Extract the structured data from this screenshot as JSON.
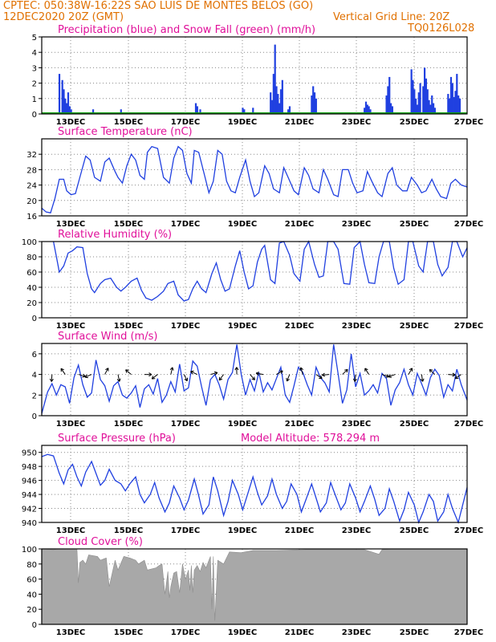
{
  "header": {
    "station_line": "CPTEC:   050:38W-16:22S   SAO LUIS DE MONTES BELOS (GO)",
    "date_line": "12DEC2020 20Z (GMT)",
    "grid_line": "Vertical Grid Line: 20Z",
    "code": "TQ0126L028"
  },
  "colors": {
    "header": "#e07000",
    "title": "#e0109a",
    "line": "#2040e0",
    "snow": "#10a010",
    "cloud": "#a8a8a8",
    "grid": "#888888"
  },
  "chart_data": [
    {
      "type": "bar",
      "title": "Precipitation (blue) and Snow Fall (green) (mm/h)",
      "ylim": [
        0,
        5
      ],
      "yticks": [
        0,
        1,
        2,
        3,
        4,
        5
      ],
      "x_ticks": [
        "13DEC",
        "15DEC",
        "17DEC",
        "19DEC",
        "21DEC",
        "23DEC",
        "25DEC",
        "27DEC"
      ],
      "xlim": [
        0,
        14.5
      ],
      "series": [
        {
          "name": "Precipitation",
          "x": [
            0.6,
            0.7,
            0.75,
            0.8,
            0.85,
            0.9,
            0.95,
            1.0,
            1.2,
            1.75,
            2.7,
            5.25,
            5.3,
            5.4,
            6.85,
            6.9,
            7.2,
            7.8,
            7.85,
            7.9,
            7.95,
            8.0,
            8.05,
            8.1,
            8.15,
            8.2,
            8.4,
            8.45,
            9.2,
            9.25,
            9.3,
            9.35,
            11.0,
            11.05,
            11.1,
            11.15,
            11.2,
            11.75,
            11.8,
            11.85,
            11.9,
            11.95,
            12.6,
            12.65,
            12.7,
            12.75,
            12.8,
            12.85,
            12.9,
            13.0,
            13.05,
            13.1,
            13.15,
            13.2,
            13.25,
            13.3,
            13.35,
            13.4,
            13.85,
            13.9,
            13.95,
            14.0,
            14.05,
            14.1,
            14.15,
            14.2,
            14.25
          ],
          "values": [
            2.6,
            2.2,
            1.6,
            1.0,
            0.7,
            1.4,
            0.5,
            0.3,
            0.1,
            0.3,
            0.3,
            0.7,
            0.5,
            0.3,
            0.4,
            0.3,
            0.4,
            1.4,
            0.9,
            2.6,
            4.5,
            1.8,
            1.3,
            0.7,
            1.6,
            2.2,
            0.3,
            0.5,
            1.2,
            1.8,
            1.4,
            1.0,
            0.4,
            0.8,
            0.6,
            0.5,
            0.3,
            1.2,
            1.8,
            2.4,
            0.7,
            0.5,
            2.9,
            2.2,
            1.6,
            1.0,
            0.6,
            1.4,
            2.0,
            1.8,
            3.0,
            2.3,
            1.6,
            0.9,
            0.6,
            1.2,
            0.7,
            0.4,
            1.3,
            1.0,
            2.4,
            2.0,
            1.1,
            1.5,
            2.6,
            1.2,
            1.0
          ]
        },
        {
          "name": "Snow Fall",
          "values": [
            0
          ]
        }
      ]
    },
    {
      "type": "line",
      "title": "Surface Temperature (nC)",
      "ylim": [
        16,
        36
      ],
      "yticks": [
        16,
        20,
        24,
        28,
        32
      ],
      "x_ticks": [
        "13DEC",
        "15DEC",
        "17DEC",
        "19DEC",
        "21DEC",
        "23DEC",
        "25DEC",
        "27DEC"
      ],
      "xlim": [
        0,
        14.5
      ],
      "x": [
        0,
        0.15,
        0.3,
        0.45,
        0.6,
        0.75,
        0.85,
        1.0,
        1.15,
        1.3,
        1.5,
        1.65,
        1.8,
        2.0,
        2.15,
        2.3,
        2.5,
        2.6,
        2.75,
        2.9,
        3.05,
        3.2,
        3.35,
        3.5,
        3.6,
        3.75,
        3.95,
        4.15,
        4.35,
        4.5,
        4.65,
        4.8,
        4.95,
        5.1,
        5.2,
        5.35,
        5.55,
        5.7,
        5.85,
        6.0,
        6.15,
        6.3,
        6.45,
        6.6,
        6.75,
        6.95,
        7.1,
        7.25,
        7.4,
        7.6,
        7.75,
        7.9,
        8.1,
        8.25,
        8.4,
        8.6,
        8.75,
        8.95,
        9.1,
        9.25,
        9.45,
        9.6,
        9.75,
        9.95,
        10.1,
        10.25,
        10.45,
        10.6,
        10.75,
        10.95,
        11.1,
        11.25,
        11.45,
        11.6,
        11.8,
        11.95,
        12.1,
        12.3,
        12.45,
        12.6,
        12.8,
        12.95,
        13.1,
        13.3,
        13.45,
        13.6,
        13.8,
        13.95,
        14.1,
        14.3,
        14.5
      ],
      "values": [
        18.0,
        17.0,
        16.8,
        20.5,
        25.5,
        25.5,
        22.5,
        21.5,
        21.8,
        26.0,
        31.5,
        30.5,
        26.0,
        25.0,
        30.0,
        31.0,
        27.5,
        26.0,
        24.5,
        29.0,
        32.0,
        30.5,
        26.5,
        25.5,
        32.5,
        34.0,
        33.5,
        26.0,
        24.5,
        31.0,
        34.0,
        33.0,
        27.0,
        24.5,
        33.0,
        32.5,
        26.5,
        22.0,
        25.0,
        33.0,
        32.0,
        25.0,
        22.5,
        22.0,
        26.0,
        30.5,
        25.0,
        21.0,
        22.0,
        29.0,
        27.0,
        23.0,
        22.0,
        28.5,
        26.0,
        22.5,
        21.5,
        28.5,
        26.5,
        23.0,
        22.0,
        28.0,
        25.5,
        21.5,
        21.0,
        28.0,
        28.0,
        24.5,
        22.0,
        22.5,
        27.5,
        25.0,
        22.0,
        21.0,
        27.0,
        28.5,
        24.0,
        22.5,
        22.5,
        26.0,
        24.0,
        22.0,
        22.5,
        25.5,
        23.0,
        21.0,
        20.5,
        24.5,
        25.5,
        24.0,
        23.5
      ]
    },
    {
      "type": "line",
      "title": "Relative Humidity (%)",
      "ylim": [
        0,
        100
      ],
      "yticks": [
        0,
        20,
        40,
        60,
        80,
        100
      ],
      "x_ticks": [
        "13DEC",
        "15DEC",
        "17DEC",
        "19DEC",
        "21DEC",
        "23DEC",
        "25DEC",
        "27DEC"
      ],
      "xlim": [
        0,
        14.5
      ],
      "x": [
        0.4,
        0.5,
        0.6,
        0.75,
        0.9,
        1.05,
        1.2,
        1.4,
        1.55,
        1.7,
        1.8,
        2.0,
        2.15,
        2.35,
        2.55,
        2.7,
        2.85,
        3.05,
        3.25,
        3.4,
        3.55,
        3.75,
        3.95,
        4.15,
        4.3,
        4.5,
        4.65,
        4.85,
        5.0,
        5.15,
        5.3,
        5.45,
        5.6,
        5.8,
        5.95,
        6.1,
        6.25,
        6.4,
        6.6,
        6.75,
        6.9,
        7.05,
        7.2,
        7.35,
        7.5,
        7.6,
        7.8,
        7.95,
        8.1,
        8.25,
        8.45,
        8.6,
        8.8,
        8.95,
        9.1,
        9.3,
        9.45,
        9.6,
        9.75,
        9.95,
        10.1,
        10.3,
        10.5,
        10.65,
        10.85,
        11.0,
        11.15,
        11.35,
        11.5,
        11.65,
        11.85,
        12.0,
        12.15,
        12.35,
        12.5,
        12.65,
        12.85,
        13.0,
        13.15,
        13.35,
        13.5,
        13.65,
        13.85,
        14.0,
        14.15,
        14.35,
        14.5
      ],
      "values": [
        100,
        80,
        60,
        68,
        85,
        88,
        93,
        92,
        58,
        38,
        33,
        45,
        50,
        52,
        40,
        35,
        40,
        48,
        52,
        36,
        26,
        23,
        28,
        35,
        45,
        48,
        30,
        22,
        24,
        38,
        48,
        38,
        33,
        58,
        72,
        50,
        35,
        38,
        68,
        88,
        60,
        38,
        42,
        73,
        90,
        95,
        50,
        45,
        98,
        100,
        82,
        58,
        48,
        90,
        100,
        70,
        53,
        55,
        100,
        100,
        90,
        45,
        44,
        92,
        100,
        70,
        46,
        45,
        80,
        100,
        100,
        65,
        44,
        50,
        100,
        100,
        68,
        60,
        100,
        100,
        70,
        55,
        66,
        100,
        100,
        80,
        92
      ]
    },
    {
      "type": "line",
      "title": "Surface Wind (m/s)",
      "ylim": [
        0,
        7
      ],
      "yticks": [
        0,
        2,
        4,
        6
      ],
      "x_ticks": [
        "13DEC",
        "15DEC",
        "17DEC",
        "19DEC",
        "21DEC",
        "23DEC",
        "25DEC",
        "27DEC"
      ],
      "xlim": [
        0,
        14.5
      ],
      "x": [
        0,
        0.2,
        0.35,
        0.5,
        0.65,
        0.8,
        0.95,
        1.1,
        1.25,
        1.4,
        1.55,
        1.7,
        1.85,
        2.0,
        2.15,
        2.3,
        2.45,
        2.6,
        2.75,
        2.9,
        3.05,
        3.2,
        3.35,
        3.5,
        3.65,
        3.8,
        3.95,
        4.1,
        4.25,
        4.4,
        4.55,
        4.7,
        4.85,
        5.0,
        5.15,
        5.3,
        5.45,
        5.6,
        5.75,
        5.9,
        6.05,
        6.2,
        6.35,
        6.5,
        6.65,
        6.8,
        6.95,
        7.1,
        7.25,
        7.4,
        7.55,
        7.7,
        7.85,
        8.0,
        8.15,
        8.3,
        8.45,
        8.6,
        8.75,
        8.9,
        9.05,
        9.2,
        9.35,
        9.5,
        9.65,
        9.8,
        9.95,
        10.1,
        10.25,
        10.4,
        10.55,
        10.7,
        10.85,
        11.0,
        11.15,
        11.3,
        11.45,
        11.6,
        11.75,
        11.9,
        12.05,
        12.2,
        12.35,
        12.5,
        12.65,
        12.8,
        12.95,
        13.1,
        13.25,
        13.4,
        13.55,
        13.7,
        13.85,
        14.0,
        14.15,
        14.3,
        14.5
      ],
      "values": [
        0.2,
        2.3,
        3.1,
        2.0,
        3.0,
        2.8,
        1.2,
        3.7,
        4.9,
        3.0,
        1.8,
        2.2,
        5.4,
        3.5,
        2.9,
        1.4,
        2.9,
        3.3,
        2.0,
        1.7,
        2.2,
        2.9,
        0.8,
        2.6,
        3.0,
        2.1,
        3.6,
        1.3,
        2.0,
        3.3,
        2.3,
        5.0,
        2.4,
        2.7,
        5.3,
        4.8,
        2.8,
        1.0,
        3.5,
        4.0,
        3.0,
        1.6,
        3.5,
        4.2,
        6.9,
        4.0,
        2.0,
        3.5,
        2.4,
        4.2,
        2.3,
        3.2,
        2.5,
        3.6,
        4.7,
        2.0,
        1.3,
        2.9,
        4.7,
        4.2,
        3.0,
        2.0,
        4.7,
        3.7,
        3.2,
        2.3,
        6.9,
        4.1,
        1.2,
        2.5,
        6.0,
        2.8,
        4.1,
        2.0,
        2.4,
        3.0,
        2.2,
        4.1,
        3.6,
        1.0,
        2.5,
        3.2,
        4.5,
        3.0,
        2.0,
        4.1,
        3.1,
        2.0,
        3.7,
        4.5,
        3.9,
        1.8,
        3.0,
        2.4,
        4.5,
        3.0,
        1.5
      ]
    },
    {
      "type": "line",
      "title": "Surface Pressure (hPa)",
      "annotation": "Model Altitude: 578.294 m",
      "ylim": [
        940,
        951
      ],
      "yticks": [
        940,
        942,
        944,
        946,
        948,
        950
      ],
      "x_ticks": [
        "13DEC",
        "15DEC",
        "17DEC",
        "19DEC",
        "21DEC",
        "23DEC",
        "25DEC",
        "27DEC"
      ],
      "xlim": [
        0,
        14.5
      ],
      "x": [
        0,
        0.2,
        0.4,
        0.6,
        0.75,
        0.9,
        1.05,
        1.2,
        1.35,
        1.5,
        1.7,
        1.85,
        2.0,
        2.15,
        2.3,
        2.5,
        2.7,
        2.85,
        3.0,
        3.2,
        3.35,
        3.5,
        3.7,
        3.85,
        4.0,
        4.2,
        4.35,
        4.5,
        4.7,
        4.85,
        5.0,
        5.2,
        5.35,
        5.5,
        5.7,
        5.85,
        6.0,
        6.2,
        6.35,
        6.5,
        6.7,
        6.85,
        7.0,
        7.2,
        7.35,
        7.5,
        7.7,
        7.85,
        8.0,
        8.2,
        8.35,
        8.5,
        8.7,
        8.85,
        9.0,
        9.2,
        9.35,
        9.5,
        9.7,
        9.85,
        10.0,
        10.2,
        10.35,
        10.5,
        10.7,
        10.85,
        11.0,
        11.2,
        11.35,
        11.5,
        11.7,
        11.85,
        12.0,
        12.2,
        12.35,
        12.5,
        12.7,
        12.85,
        13.0,
        13.2,
        13.35,
        13.5,
        13.7,
        13.85,
        14.0,
        14.2,
        14.35,
        14.5
      ],
      "values": [
        949.4,
        949.7,
        949.5,
        947.0,
        945.5,
        947.5,
        948.3,
        946.5,
        945.2,
        947.2,
        948.7,
        947.0,
        945.3,
        946.0,
        947.6,
        946.0,
        945.5,
        944.5,
        945.5,
        946.5,
        944.0,
        942.8,
        944.0,
        945.7,
        943.5,
        941.5,
        942.8,
        945.2,
        943.5,
        941.8,
        943.2,
        946.2,
        943.8,
        941.2,
        942.5,
        946.5,
        944.5,
        941.0,
        943.0,
        946.0,
        944.0,
        941.8,
        943.8,
        946.5,
        944.3,
        942.5,
        943.8,
        946.2,
        944.0,
        942.0,
        943.0,
        945.5,
        944.0,
        941.5,
        943.2,
        945.5,
        943.5,
        941.5,
        942.8,
        945.7,
        944.0,
        941.8,
        942.8,
        945.5,
        943.5,
        941.5,
        943.0,
        945.2,
        943.3,
        941.0,
        942.0,
        944.8,
        943.0,
        940.2,
        941.8,
        944.3,
        942.5,
        940.0,
        941.5,
        944.0,
        943.0,
        940.2,
        941.5,
        944.0,
        942.0,
        940.0,
        942.5,
        945.0
      ]
    },
    {
      "type": "area",
      "title": "Cloud Cover (%)",
      "ylim": [
        0,
        100
      ],
      "yticks": [
        0,
        20,
        40,
        60,
        80,
        100
      ],
      "x_ticks": [
        "13DEC",
        "15DEC",
        "17DEC",
        "19DEC",
        "21DEC",
        "23DEC",
        "25DEC",
        "27DEC"
      ],
      "xlim": [
        0,
        14.5
      ],
      "x": [
        0,
        0.4,
        0.6,
        1.2,
        1.25,
        1.3,
        1.4,
        1.5,
        1.6,
        1.9,
        2.0,
        2.2,
        2.3,
        2.5,
        2.6,
        2.8,
        3.0,
        3.2,
        3.3,
        3.5,
        3.6,
        3.9,
        4.0,
        4.1,
        4.2,
        4.3,
        4.35,
        4.4,
        4.5,
        4.6,
        4.7,
        4.8,
        4.9,
        5.0,
        5.05,
        5.1,
        5.15,
        5.2,
        5.3,
        5.4,
        5.5,
        5.6,
        5.75,
        5.8,
        5.85,
        5.9,
        6.0,
        6.2,
        6.4,
        6.8,
        7.2,
        8.0,
        9.0,
        10.0,
        11.0,
        11.5,
        11.6,
        12.0,
        13.0,
        14.5
      ],
      "values": [
        100,
        99,
        100,
        100,
        55,
        82,
        85,
        80,
        92,
        90,
        85,
        88,
        50,
        85,
        72,
        90,
        88,
        85,
        80,
        85,
        72,
        75,
        78,
        80,
        40,
        70,
        35,
        50,
        68,
        70,
        42,
        80,
        60,
        72,
        45,
        78,
        42,
        72,
        78,
        70,
        82,
        75,
        90,
        20,
        90,
        5,
        85,
        80,
        96,
        95,
        98,
        98,
        99,
        99,
        99,
        93,
        99,
        100,
        100,
        100
      ]
    }
  ]
}
